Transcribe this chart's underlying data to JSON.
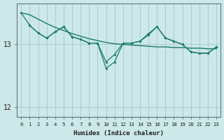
{
  "xlabel": "Humidex (Indice chaleur)",
  "background_color": "#cce8e8",
  "grid_color": "#aacccc",
  "line_color": "#1a7a6e",
  "xlim": [
    -0.5,
    23.5
  ],
  "ylim": [
    11.85,
    13.65
  ],
  "yticks": [
    12,
    13
  ],
  "xticks": [
    0,
    1,
    2,
    3,
    4,
    5,
    6,
    7,
    8,
    9,
    10,
    11,
    12,
    13,
    14,
    15,
    16,
    17,
    18,
    19,
    20,
    21,
    22,
    23
  ],
  "line1_x": [
    0,
    1,
    2,
    3,
    4,
    5,
    6,
    7,
    8,
    9,
    10,
    11,
    12,
    13,
    14,
    15,
    16,
    17,
    18,
    19,
    20,
    21,
    22,
    23
  ],
  "line1_y": [
    13.5,
    13.47,
    13.4,
    13.33,
    13.27,
    13.22,
    13.17,
    13.13,
    13.09,
    13.06,
    13.03,
    13.01,
    13.0,
    12.99,
    12.98,
    12.97,
    12.96,
    12.96,
    12.95,
    12.95,
    12.94,
    12.94,
    12.93,
    12.93
  ],
  "line2_x": [
    0,
    1,
    2,
    3,
    4,
    5,
    6,
    7,
    8,
    9,
    10,
    11,
    12,
    13,
    14,
    15,
    16,
    17,
    18,
    19,
    20,
    21,
    22,
    23
  ],
  "line2_y": [
    13.5,
    13.3,
    13.18,
    13.1,
    13.2,
    13.28,
    13.12,
    13.08,
    13.02,
    13.02,
    12.62,
    12.72,
    13.02,
    13.02,
    13.05,
    13.15,
    13.28,
    13.1,
    13.05,
    13.0,
    12.88,
    12.86,
    12.86,
    12.96
  ],
  "line3_x": [
    1,
    2,
    3,
    4,
    5,
    6,
    7,
    8,
    9,
    10,
    11,
    12,
    13,
    14,
    15,
    16,
    17,
    18,
    19,
    20,
    21,
    22,
    23
  ],
  "line3_y": [
    13.3,
    13.18,
    13.1,
    13.2,
    13.28,
    13.12,
    13.08,
    13.02,
    13.02,
    12.72,
    12.84,
    13.02,
    13.02,
    13.05,
    13.17,
    13.28,
    13.1,
    13.05,
    13.0,
    12.88,
    12.86,
    12.86,
    12.96
  ]
}
